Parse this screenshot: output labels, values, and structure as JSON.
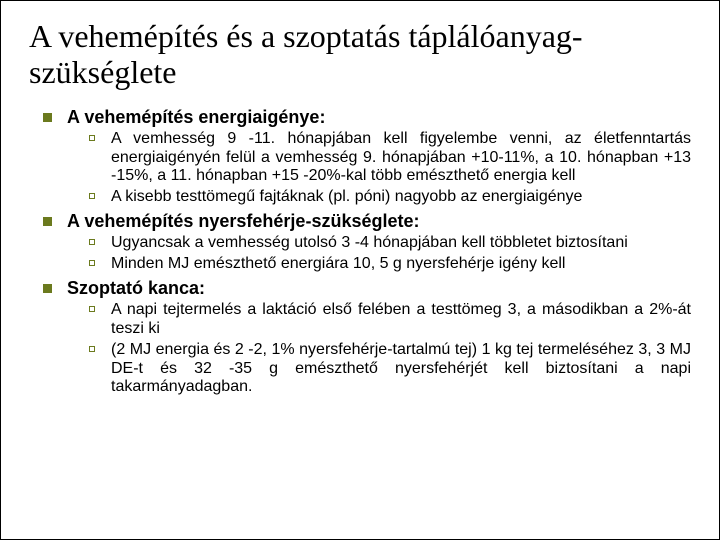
{
  "colors": {
    "bullet1": "#6b7a1e",
    "bullet2_border": "#6b7a1e",
    "bullet2_fill": "#ffffff",
    "text1": "#000000",
    "text2": "#000000"
  },
  "title": "A vehemépítés és a szoptatás táplálóanyag-szükséglete",
  "sections": [
    {
      "heading": "A vehemépítés energiaigénye:",
      "items": [
        "A vemhesség 9 -11. hónapjában kell figyelembe venni, az életfenntartás energiaigényén felül a vemhesség 9. hónapjában +10-11%, a 10. hónapban +13 -15%, a 11. hónapban +15 -20%-kal több emészthető energia kell",
        "A kisebb testtömegű fajtáknak (pl. póni) nagyobb az energiaigénye"
      ]
    },
    {
      "heading": "A vehemépítés nyersfehérje-szükséglete:",
      "items": [
        "Ugyancsak a vemhesség utolsó 3 -4 hónapjában kell többletet biztosítani",
        "Minden MJ emészthető energiára 10, 5 g nyersfehérje igény kell"
      ]
    },
    {
      "heading": "Szoptató kanca:",
      "items": [
        "A napi tejtermelés a laktáció első felében a testtömeg 3, a másodikban a 2%-át teszi ki",
        "(2 MJ energia és 2 -2, 1% nyersfehérje-tartalmú tej) 1 kg tej termeléséhez 3, 3 MJ DE-t és 32 -35 g emészthető nyersfehérjét kell biztosítani a napi takarmányadagban."
      ]
    }
  ]
}
